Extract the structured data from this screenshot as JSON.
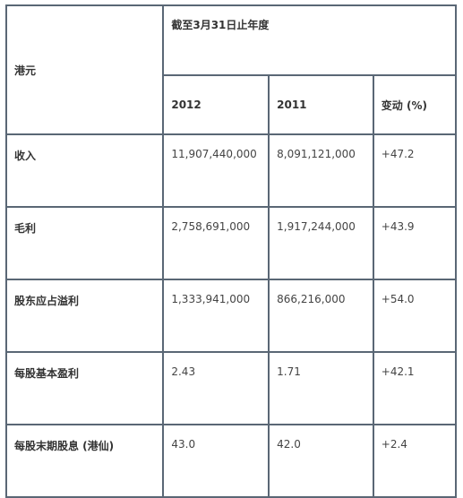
{
  "table": {
    "unit_label": "港元",
    "period_label": "截至3月31日止年度",
    "columns": [
      "2012",
      "2011",
      "变动 (%)"
    ],
    "rows": [
      {
        "label": "收入",
        "values": [
          "11,907,440,000",
          "8,091,121,000",
          "+47.2"
        ]
      },
      {
        "label": "毛利",
        "values": [
          "2,758,691,000",
          "1,917,244,000",
          "+43.9"
        ]
      },
      {
        "label": "股东应占溢利",
        "values": [
          "1,333,941,000",
          "866,216,000",
          "+54.0"
        ]
      },
      {
        "label": "每股基本盈利",
        "values": [
          "2.43",
          "1.71",
          "+42.1"
        ]
      },
      {
        "label": "每股末期股息 (港仙)",
        "values": [
          "43.0",
          "42.0",
          "+2.4"
        ]
      }
    ]
  }
}
